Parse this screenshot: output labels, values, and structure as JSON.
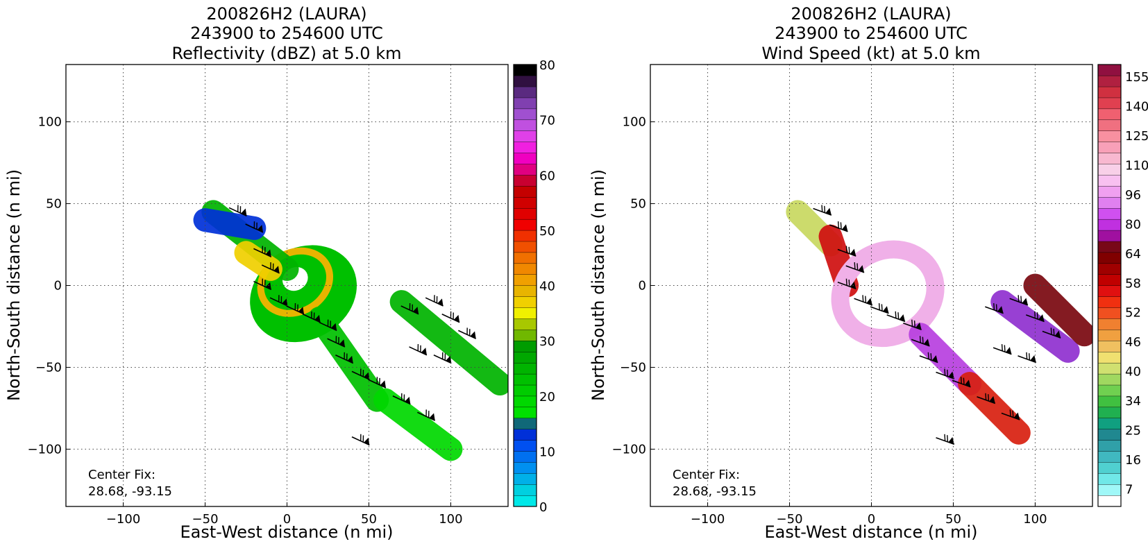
{
  "chart_data": [
    {
      "type": "heatmap",
      "title": [
        "200826H2 (LAURA)",
        "243900 to 254600 UTC",
        "Reflectivity (dBZ) at 5.0 km"
      ],
      "xlabel": "East-West distance (n mi)",
      "ylabel": "North-South distance (n mi)",
      "xlim": [
        -135,
        135
      ],
      "ylim": [
        -135,
        135
      ],
      "xticks": [
        -100,
        -50,
        0,
        50,
        100
      ],
      "xtick_labels": [
        "−100",
        "−50",
        "0",
        "50",
        "100"
      ],
      "yticks": [
        -100,
        -50,
        0,
        50,
        100
      ],
      "ytick_labels": [
        "−100",
        "−50",
        "0",
        "50",
        "100"
      ],
      "grid": true,
      "annotation": [
        "Center Fix:",
        "28.68, -93.15"
      ],
      "colorbar": {
        "min": 0,
        "max": 80,
        "ticks": [
          0,
          10,
          20,
          30,
          40,
          50,
          60,
          70,
          80
        ],
        "tick_labels": [
          "0",
          "10",
          "20",
          "30",
          "40",
          "50",
          "60",
          "70",
          "80"
        ],
        "colors": [
          "#00e8e8",
          "#00d0e0",
          "#00b0e8",
          "#0090f0",
          "#0070f0",
          "#0050f0",
          "#0030d8",
          "#106878",
          "#00e000",
          "#00d800",
          "#00cc00",
          "#00c000",
          "#00b400",
          "#00a800",
          "#009c00",
          "#70b800",
          "#a8c800",
          "#f0f000",
          "#f0d000",
          "#e8b400",
          "#f0a000",
          "#f08800",
          "#f07000",
          "#f05000",
          "#f03000",
          "#f00000",
          "#e00000",
          "#d00000",
          "#c40000",
          "#c80030",
          "#e00080",
          "#f000c0",
          "#f020e0",
          "#e040e8",
          "#c050e0",
          "#a050d0",
          "#8040b0",
          "#5a2a80",
          "#301040",
          "#000000"
        ]
      },
      "data_regions": [
        {
          "type": "ring-blob",
          "x": 10,
          "y": -5,
          "rx": 34,
          "ry": 28,
          "level": 22
        },
        {
          "type": "eyewall",
          "x": 5,
          "y": 2,
          "rx": 22,
          "ry": 18,
          "level": 37
        },
        {
          "type": "eye",
          "x": 5,
          "y": 4,
          "rx": 8,
          "ry": 7,
          "level": null
        },
        {
          "type": "band",
          "x1": -45,
          "y1": 45,
          "x2": 0,
          "y2": 10,
          "level": 24
        },
        {
          "type": "band",
          "x1": -25,
          "y1": 20,
          "x2": -10,
          "y2": 10,
          "level": 36
        },
        {
          "type": "band",
          "x1": 20,
          "y1": -20,
          "x2": 55,
          "y2": -70,
          "level": 22
        },
        {
          "type": "band",
          "x1": 70,
          "y1": -10,
          "x2": 130,
          "y2": -60,
          "level": 24
        },
        {
          "type": "band",
          "x1": 60,
          "y1": -70,
          "x2": 100,
          "y2": -100,
          "level": 18
        },
        {
          "type": "band",
          "x1": -50,
          "y1": 40,
          "x2": -20,
          "y2": 35,
          "level": 12
        }
      ]
    },
    {
      "type": "heatmap",
      "title": [
        "200826H2 (LAURA)",
        "243900 to 254600 UTC",
        "Wind Speed (kt) at 5.0 km"
      ],
      "xlabel": "East-West distance (n mi)",
      "ylabel": "North-South distance (n mi)",
      "xlim": [
        -135,
        135
      ],
      "ylim": [
        -135,
        135
      ],
      "xticks": [
        -100,
        -50,
        0,
        50,
        100
      ],
      "xtick_labels": [
        "−100",
        "−50",
        "0",
        "50",
        "100"
      ],
      "yticks": [
        -100,
        -50,
        0,
        50,
        100
      ],
      "ytick_labels": [
        "−100",
        "−50",
        "0",
        "50",
        "100"
      ],
      "grid": true,
      "annotation": [
        "Center Fix:",
        "28.68, -93.15"
      ],
      "colorbar": {
        "tick_labels": [
          "7",
          "16",
          "25",
          "34",
          "40",
          "46",
          "52",
          "58",
          "64",
          "80",
          "96",
          "110",
          "125",
          "140",
          "155"
        ],
        "colors": [
          "#ffffff",
          "#a0f8f8",
          "#70e8e8",
          "#50d0d0",
          "#40b8c0",
          "#30a0a8",
          "#208890",
          "#10a080",
          "#20b050",
          "#40c040",
          "#70d050",
          "#a0d860",
          "#d0e070",
          "#f0e070",
          "#f0c060",
          "#f0a040",
          "#f08030",
          "#f05020",
          "#f03010",
          "#e01010",
          "#c00000",
          "#a00000",
          "#800000",
          "#780818",
          "#a010a0",
          "#c030e0",
          "#d050f0",
          "#e080f0",
          "#f0a0f0",
          "#f8c0f0",
          "#f8d0e8",
          "#f8b8d0",
          "#f8a0b8",
          "#f890a0",
          "#f07080",
          "#f06070",
          "#e04050",
          "#d03040",
          "#b02040",
          "#901040"
        ]
      },
      "data_regions": [
        {
          "type": "band",
          "x1": -45,
          "y1": 45,
          "x2": -25,
          "y2": 25,
          "level": "40-52"
        },
        {
          "type": "band",
          "x1": -25,
          "y1": 30,
          "x2": -15,
          "y2": 0,
          "level": "58-64"
        },
        {
          "type": "ring",
          "x": 10,
          "y": -5,
          "rx": 30,
          "ry": 26,
          "level": "96-110"
        },
        {
          "type": "band",
          "x1": 30,
          "y1": -30,
          "x2": 60,
          "y2": -60,
          "level": "80"
        },
        {
          "type": "band",
          "x1": 80,
          "y1": -10,
          "x2": 120,
          "y2": -40,
          "level": "80-96"
        },
        {
          "type": "band",
          "x1": 100,
          "y1": 0,
          "x2": 130,
          "y2": -30,
          "level": "64"
        },
        {
          "type": "band",
          "x1": 60,
          "y1": -60,
          "x2": 90,
          "y2": -90,
          "level": "52-58"
        }
      ]
    }
  ]
}
